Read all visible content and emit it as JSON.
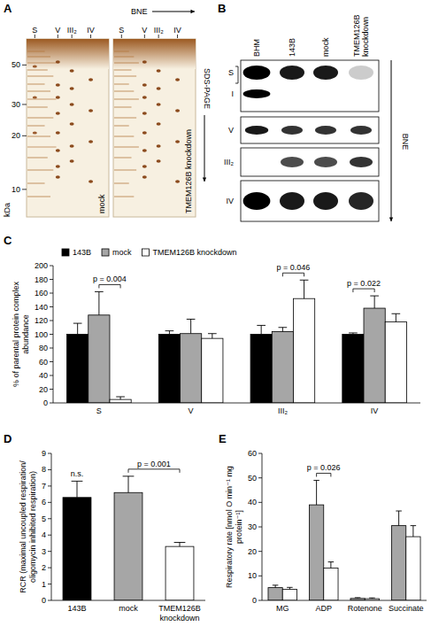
{
  "panel_letters": [
    "A",
    "B",
    "C",
    "D",
    "E"
  ],
  "panel_A": {
    "column_labels": [
      "S",
      "V",
      "III₂",
      "IV"
    ],
    "bne_label": "BNE",
    "sds_label": "SDS-PAGE",
    "gels": [
      "mock",
      "TMEM126B knockdown"
    ],
    "kda_axis": {
      "label": "kDa",
      "ylim": [
        70,
        7
      ],
      "ticks": [
        10,
        20,
        30,
        50
      ],
      "log": true
    }
  },
  "panel_B": {
    "columns": [
      "BHM",
      "143B",
      "mock",
      "TMEM126B knockdown"
    ],
    "rows": [
      "S",
      "I",
      "V",
      "III₂",
      "IV"
    ],
    "bne_label": "BNE"
  },
  "chart_data": [
    {
      "type": "bar",
      "y_label": "% of parental protein complex abundance",
      "categories": [
        "S",
        "V",
        "III₂",
        "IV"
      ],
      "series": [
        {
          "name": "143B",
          "color": "#000000",
          "values": [
            100,
            100,
            100,
            100
          ],
          "errors": [
            16,
            5,
            13,
            2
          ]
        },
        {
          "name": "mock",
          "color": "#a6a6a6",
          "values": [
            128,
            101,
            104,
            138
          ],
          "errors": [
            34,
            21,
            6,
            18
          ]
        },
        {
          "name": "TMEM126B knockdown",
          "color": "#ffffff",
          "values": [
            5,
            94,
            152,
            118
          ],
          "errors": [
            4,
            7,
            27,
            12
          ]
        }
      ],
      "ylim": [
        0,
        200
      ],
      "yticks": [
        0,
        20,
        40,
        60,
        80,
        100,
        120,
        140,
        160,
        180,
        200
      ],
      "grid": false,
      "legend": "top",
      "annotations": [
        {
          "text": "p = 0.004",
          "category": "S",
          "between": [
            "mock",
            "TMEM126B knockdown"
          ]
        },
        {
          "text": "p = 0.046",
          "category": "III₂",
          "between": [
            "mock",
            "TMEM126B knockdown"
          ]
        },
        {
          "text": "p = 0.022",
          "category": "IV",
          "between": [
            "143B",
            "mock"
          ]
        }
      ]
    },
    {
      "type": "bar",
      "y_label": "RCR (maximal uncoupled respiration/ oligomycin inhibited respiration)",
      "categories": [
        "143B",
        "mock",
        "TMEM126B knockdown"
      ],
      "values": [
        6.3,
        6.6,
        3.3
      ],
      "errors": [
        1.0,
        1.0,
        0.25
      ],
      "colors": [
        "#000000",
        "#a6a6a6",
        "#ffffff"
      ],
      "ylim": [
        0,
        9
      ],
      "yticks": [
        0,
        1,
        2,
        3,
        4,
        5,
        6,
        7,
        8,
        9
      ],
      "grid": false,
      "annotations": [
        {
          "text": "n.s.",
          "between": [
            "143B"
          ]
        },
        {
          "text": "p = 0.001",
          "between": [
            "mock",
            "TMEM126B knockdown"
          ]
        }
      ]
    },
    {
      "type": "bar",
      "y_label": "Respiratory rate [nmol O min⁻¹ mg protein⁻¹]",
      "categories": [
        "MG",
        "ADP",
        "Rotenone",
        "Succinate"
      ],
      "series": [
        {
          "color": "#a6a6a6",
          "values": [
            5.2,
            39,
            0.8,
            30.5
          ],
          "errors": [
            1.0,
            10,
            0.3,
            6
          ]
        },
        {
          "color": "#ffffff",
          "values": [
            4.5,
            13.2,
            0.7,
            26
          ],
          "errors": [
            0.8,
            2.5,
            0.3,
            4.5
          ]
        }
      ],
      "ylim": [
        0,
        60
      ],
      "yticks": [
        0,
        10,
        20,
        30,
        40,
        50,
        60
      ],
      "grid": false,
      "annotations": [
        {
          "text": "p = 0.026",
          "category": "ADP"
        }
      ]
    }
  ]
}
